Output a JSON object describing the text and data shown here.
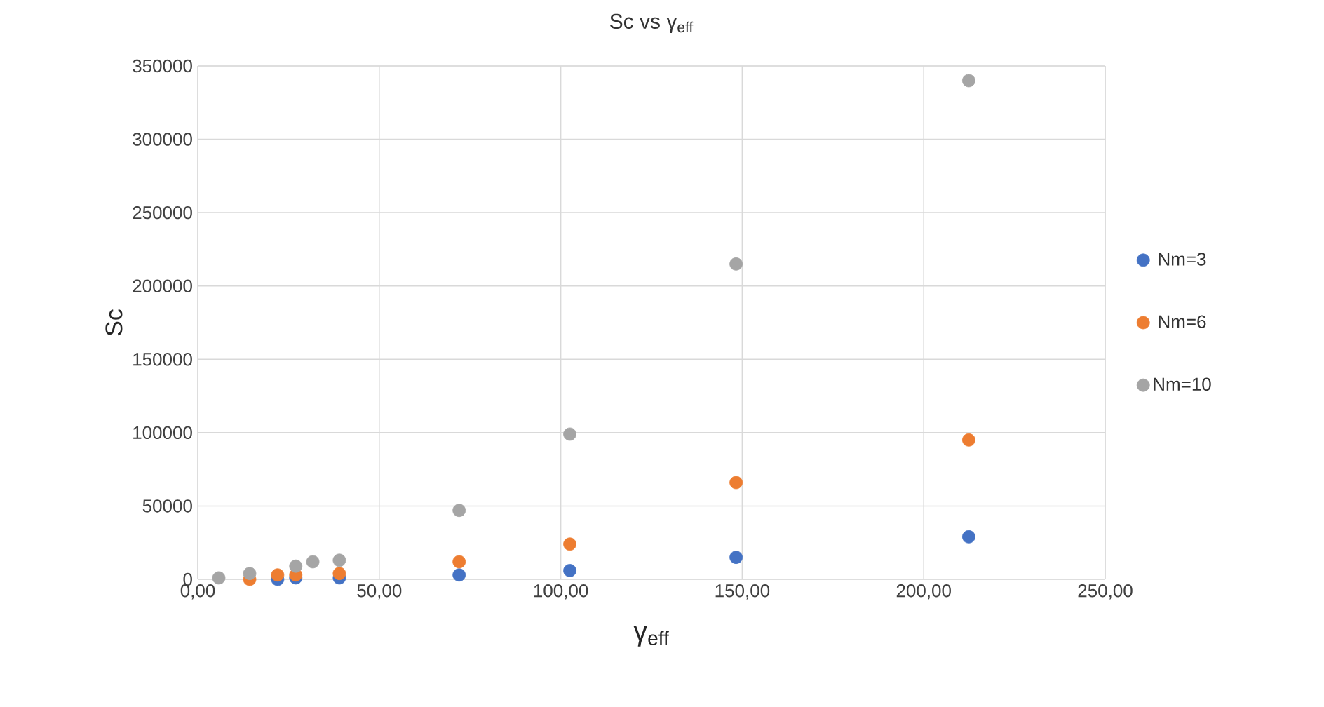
{
  "chart_data": {
    "type": "scatter",
    "title": "Sc vs γ$_{eff}$",
    "xlabel": "γ$_{eff}$",
    "ylabel": "Sc",
    "xlim": [
      0,
      250
    ],
    "ylim": [
      0,
      350000
    ],
    "xticks": [
      {
        "value": 0,
        "label": "0,00"
      },
      {
        "value": 50,
        "label": "50,00"
      },
      {
        "value": 100,
        "label": "100,00"
      },
      {
        "value": 150,
        "label": "150,00"
      },
      {
        "value": 200,
        "label": "200,00"
      },
      {
        "value": 250,
        "label": "250,00"
      }
    ],
    "yticks": [
      0,
      50000,
      100000,
      150000,
      200000,
      250000,
      300000,
      350000
    ],
    "grid": true,
    "legend": "right",
    "marker": "circle",
    "series": [
      {
        "name": "Nm=3",
        "color": "#4472c4",
        "x": [
          22,
          27,
          39,
          72,
          102.5,
          148.3,
          212.4
        ],
        "values": [
          0,
          1000,
          1000,
          3000,
          6000,
          15000,
          29000
        ]
      },
      {
        "name": "Nm=6",
        "color": "#ed7d31",
        "x": [
          14.3,
          22,
          27,
          39,
          72,
          102.5,
          148.3,
          212.4
        ],
        "values": [
          0,
          3000,
          3000,
          4000,
          12000,
          24000,
          66000,
          95000
        ]
      },
      {
        "name": "Nm=10",
        "color": "#a5a5a5",
        "x": [
          5.8,
          14.3,
          27,
          31.7,
          39,
          72,
          102.5,
          148.3,
          212.4
        ],
        "values": [
          1000,
          4000,
          9000,
          12000,
          13000,
          47000,
          99000,
          215000,
          340000
        ]
      }
    ]
  }
}
